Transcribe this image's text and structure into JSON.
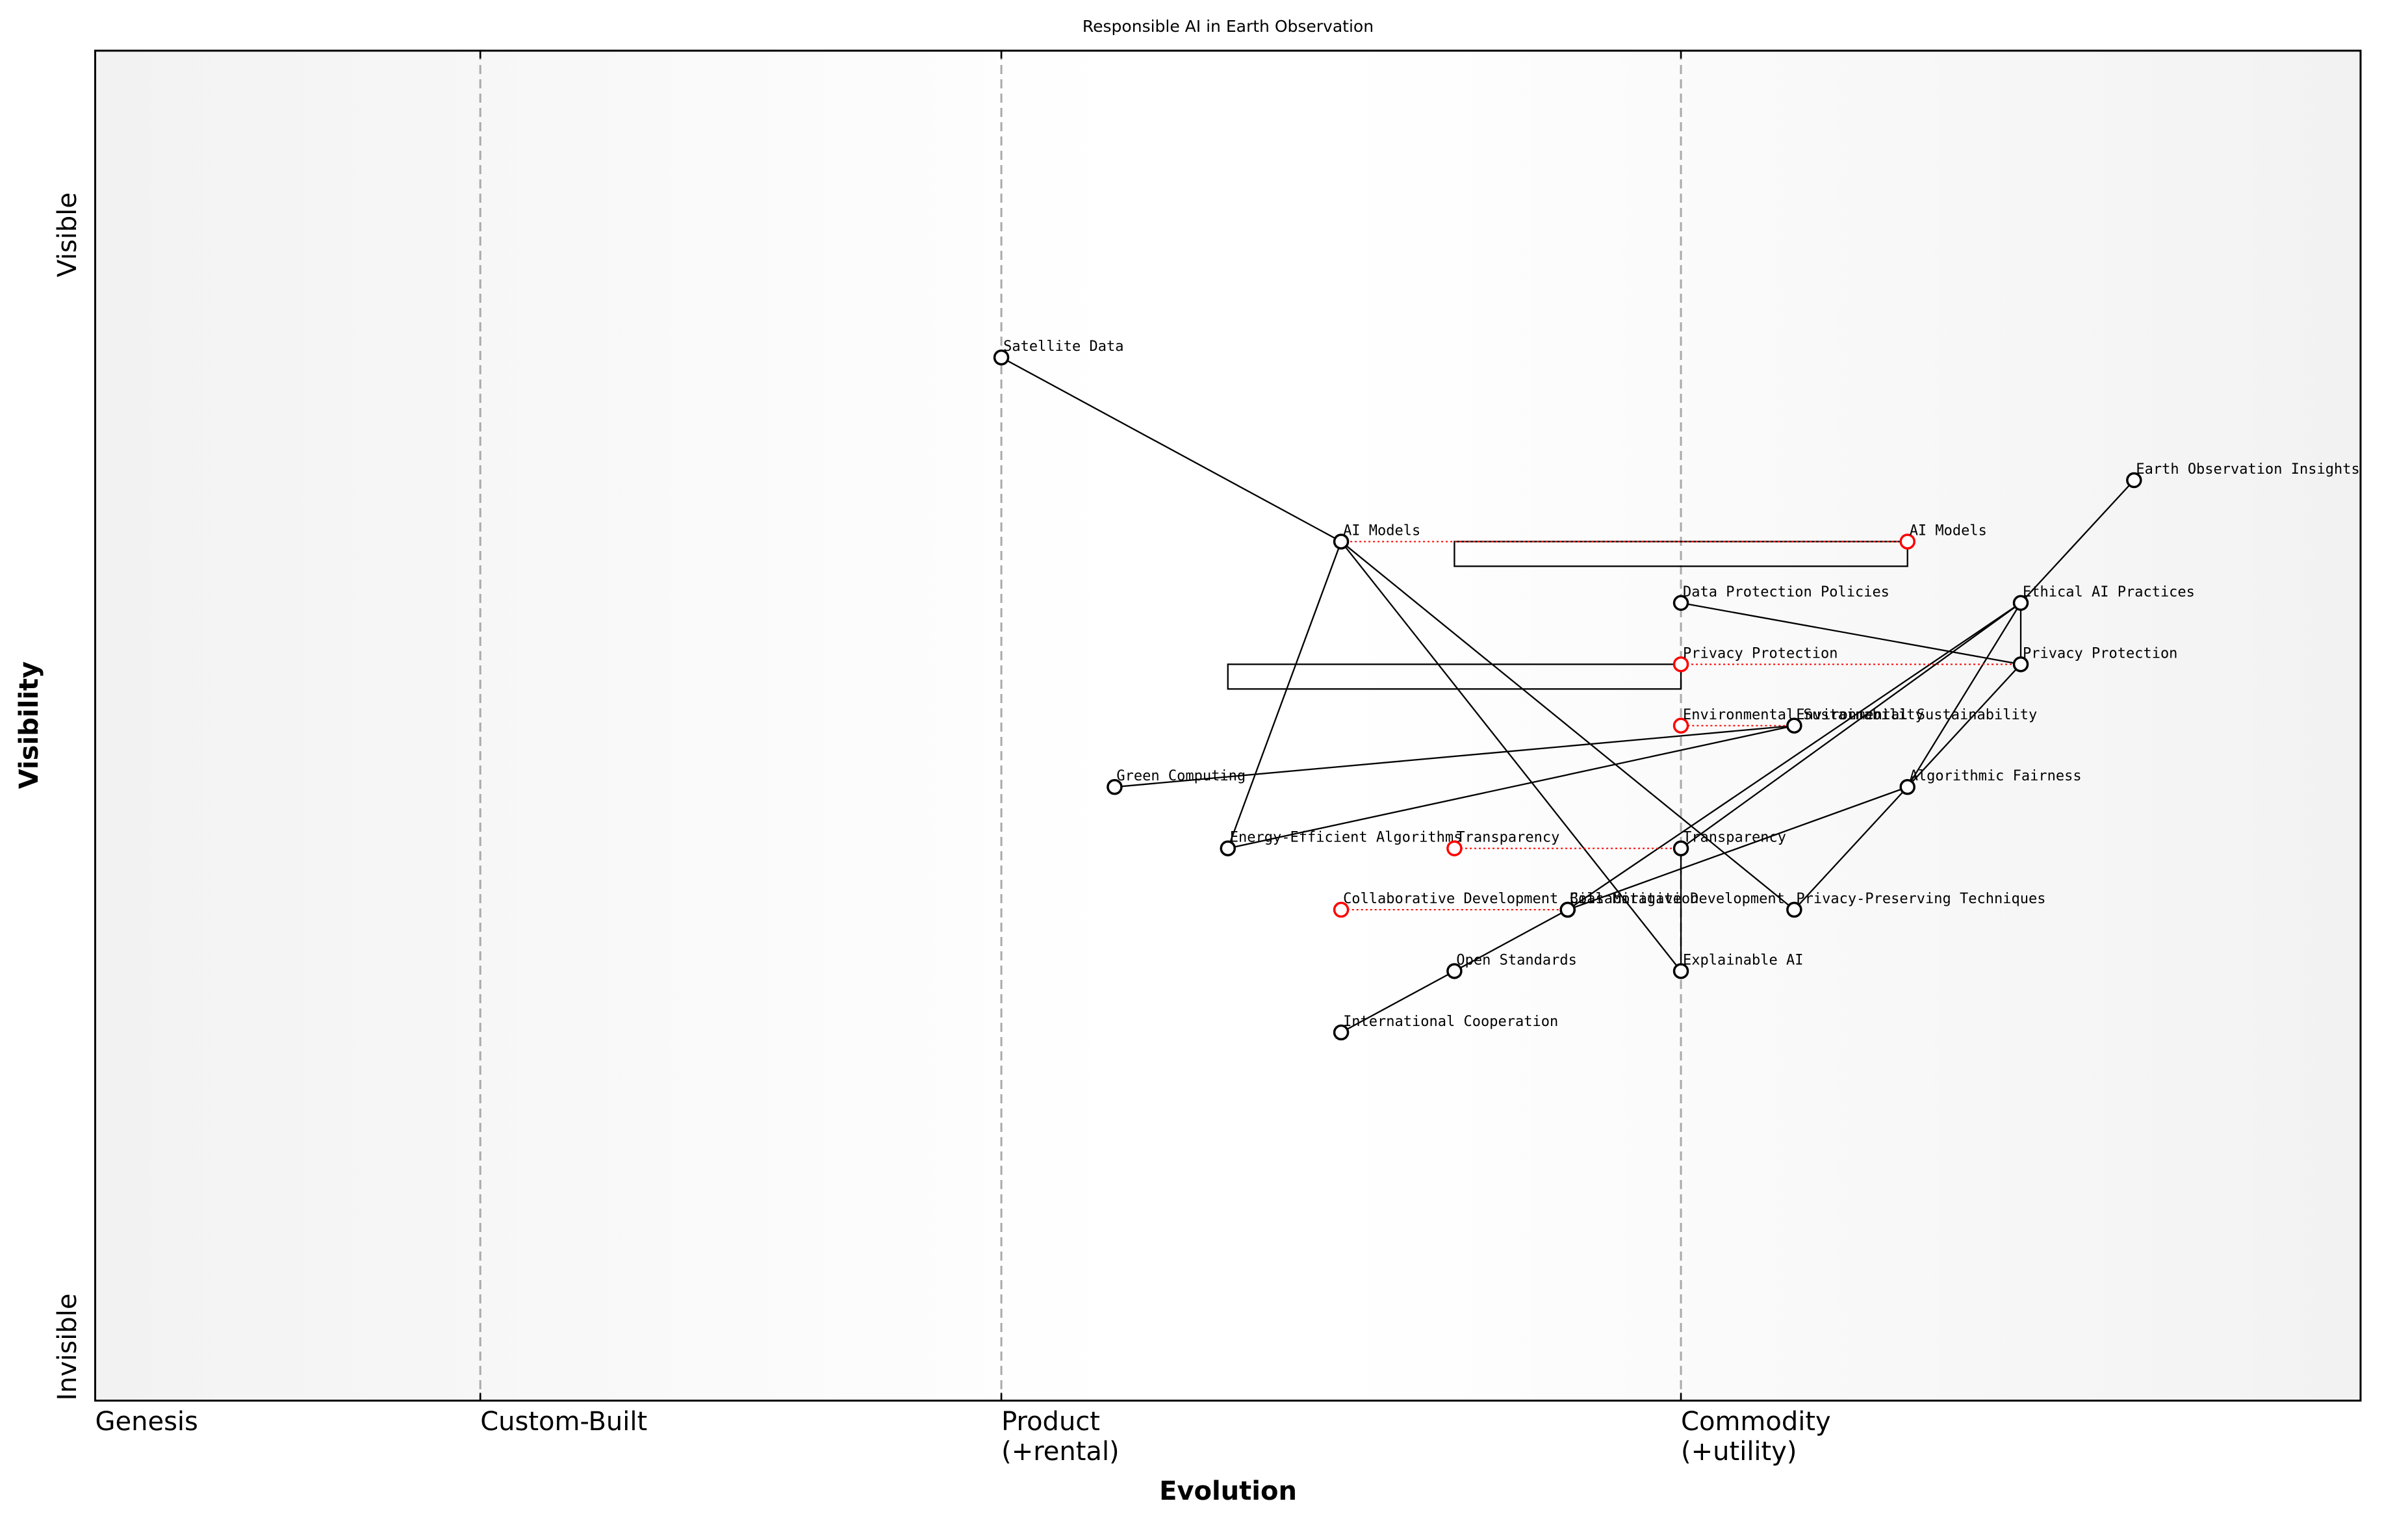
{
  "chart_data": {
    "type": "wardley",
    "title": "Responsible AI in Earth Observation",
    "xlabel": "Evolution",
    "ylabel": "Visibility",
    "xlim": [
      0,
      1
    ],
    "ylim": [
      -0.05,
      1.05
    ],
    "xticks": [
      {
        "value": 0,
        "label": "Genesis"
      },
      {
        "value": 0.17,
        "label": "Custom-Built"
      },
      {
        "value": 0.4,
        "label": "Product\n(+rental)"
      },
      {
        "value": 0.7,
        "label": "Commodity\n(+utility)"
      }
    ],
    "yticks": [
      {
        "value": -0.05,
        "label": "Invisible"
      },
      {
        "value": 0.9,
        "label": "Visible"
      }
    ],
    "components": [
      {
        "name": "Satellite Data",
        "x": 0.4,
        "y": 0.8
      },
      {
        "name": "Earth Observation Insights",
        "x": 0.9,
        "y": 0.7
      },
      {
        "name": "AI Models",
        "x": 0.55,
        "y": 0.65
      },
      {
        "name": "Data Protection Policies",
        "x": 0.7,
        "y": 0.6
      },
      {
        "name": "Ethical AI Practices",
        "x": 0.85,
        "y": 0.6
      },
      {
        "name": "Privacy Protection",
        "x": 0.85,
        "y": 0.55
      },
      {
        "name": "Environmental Sustainability",
        "x": 0.75,
        "y": 0.5
      },
      {
        "name": "Green Computing",
        "x": 0.45,
        "y": 0.45
      },
      {
        "name": "Algorithmic Fairness",
        "x": 0.8,
        "y": 0.45
      },
      {
        "name": "Energy-Efficient Algorithms",
        "x": 0.5,
        "y": 0.4
      },
      {
        "name": "Transparency",
        "x": 0.7,
        "y": 0.4
      },
      {
        "name": "Collaborative Development",
        "x": 0.65,
        "y": 0.35
      },
      {
        "name": "Bias Mitigation",
        "x": 0.65,
        "y": 0.35
      },
      {
        "name": "Privacy-Preserving Techniques",
        "x": 0.75,
        "y": 0.35
      },
      {
        "name": "Open Standards",
        "x": 0.6,
        "y": 0.3
      },
      {
        "name": "Explainable AI",
        "x": 0.7,
        "y": 0.3
      },
      {
        "name": "International Cooperation",
        "x": 0.55,
        "y": 0.25
      }
    ],
    "evolve": [
      {
        "name": "AI Models",
        "x": 0.8
      },
      {
        "name": "Privacy Protection",
        "x": 0.7
      },
      {
        "name": "Environmental Sustainability",
        "x": 0.7
      },
      {
        "name": "Transparency",
        "x": 0.6
      },
      {
        "name": "Collaborative Development",
        "x": 0.55
      }
    ],
    "pipelines": [
      {
        "component": "AI Models",
        "x_start": 0.6,
        "x_end": 0.8
      },
      {
        "component": "Privacy Protection",
        "x_start": 0.5,
        "x_end": 0.7
      }
    ],
    "links": [
      [
        "Satellite Data",
        "AI Models"
      ],
      [
        "Earth Observation Insights",
        "Ethical AI Practices"
      ],
      [
        "AI Models",
        "Energy-Efficient Algorithms"
      ],
      [
        "AI Models",
        "Explainable AI"
      ],
      [
        "AI Models",
        "Privacy-Preserving Techniques"
      ],
      [
        "Data Protection Policies",
        "Privacy Protection"
      ],
      [
        "Ethical AI Practices",
        "Privacy Protection"
      ],
      [
        "Ethical AI Practices",
        "Algorithmic Fairness"
      ],
      [
        "Ethical AI Practices",
        "Transparency"
      ],
      [
        "Ethical AI Practices",
        "Collaborative Development"
      ],
      [
        "Privacy Protection",
        "Privacy-Preserving Techniques"
      ],
      [
        "Environmental Sustainability",
        "Green Computing"
      ],
      [
        "Environmental Sustainability",
        "Energy-Efficient Algorithms"
      ],
      [
        "Algorithmic Fairness",
        "Bias Mitigation"
      ],
      [
        "Transparency",
        "Explainable AI"
      ],
      [
        "Collaborative Development",
        "Open Standards"
      ],
      [
        "Open Standards",
        "International Cooperation"
      ]
    ],
    "color": "#000000",
    "evolve_color": "#ff0000"
  }
}
